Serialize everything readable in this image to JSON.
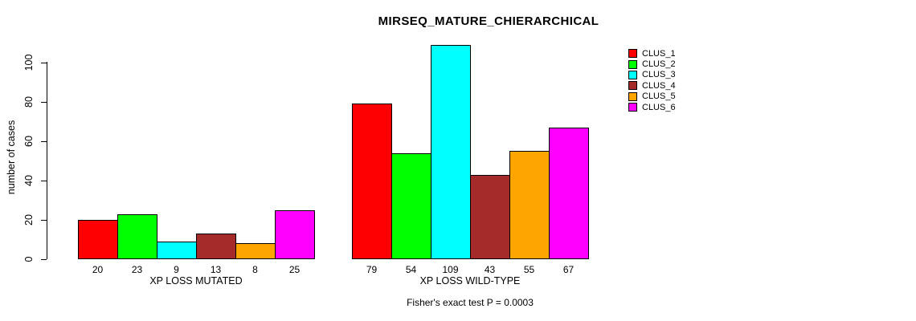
{
  "title": "MIRSEQ_MATURE_CHIERARCHICAL",
  "footer": "Fisher's exact test P = 0.0003",
  "chart_data": {
    "type": "bar",
    "title": "MIRSEQ_MATURE_CHIERARCHICAL",
    "xlabel": "",
    "ylabel": "number of cases",
    "ylim": [
      0,
      100
    ],
    "yticks": [
      0,
      20,
      40,
      60,
      80,
      100
    ],
    "grid": false,
    "legend_position": "top-right",
    "categories": [
      "XP LOSS MUTATED",
      "XP LOSS WILD-TYPE"
    ],
    "series": [
      {
        "name": "CLUS_1",
        "color": "#FF0000",
        "values": [
          20,
          79
        ]
      },
      {
        "name": "CLUS_2",
        "color": "#00FF00",
        "values": [
          23,
          54
        ]
      },
      {
        "name": "CLUS_3",
        "color": "#00FFFF",
        "values": [
          9,
          109
        ]
      },
      {
        "name": "CLUS_4",
        "color": "#A52A2A",
        "values": [
          13,
          43
        ]
      },
      {
        "name": "CLUS_5",
        "color": "#FFA500",
        "values": [
          8,
          55
        ]
      },
      {
        "name": "CLUS_6",
        "color": "#FF00FF",
        "values": [
          25,
          67
        ]
      }
    ],
    "groups": [
      {
        "label": "XP LOSS MUTATED",
        "values": [
          20,
          23,
          9,
          13,
          8,
          25
        ]
      },
      {
        "label": "XP LOSS WILD-TYPE",
        "values": [
          79,
          54,
          109,
          43,
          55,
          67
        ]
      }
    ],
    "bar_value_labels_shown": true,
    "annotation": "Fisher's exact test P = 0.0003"
  }
}
